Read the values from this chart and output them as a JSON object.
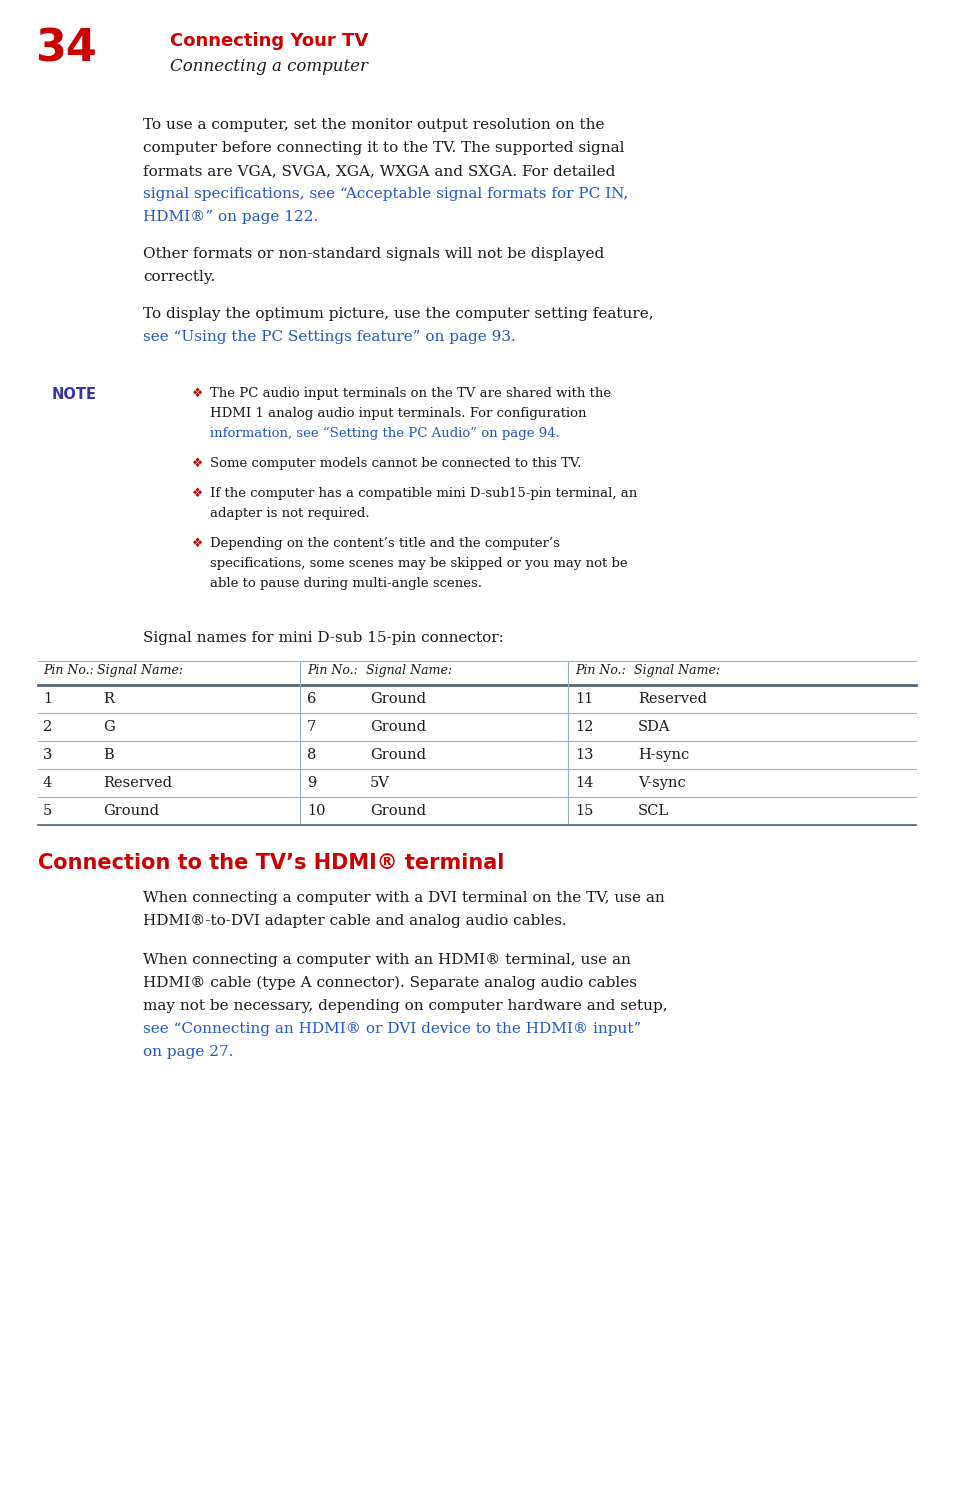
{
  "page_number": "34",
  "header_title": "Connecting Your TV",
  "header_subtitle": "Connecting a computer",
  "red_color": "#CC0000",
  "blue_color": "#2255CC",
  "black_color": "#1a1a1a",
  "gray_bar_color": "#7a8fa0",
  "note_color": "#3333aa",
  "background": "#ffffff",
  "table_headers": [
    "Pin No.:",
    "Signal Name:",
    "Pin No.:",
    "Signal Name:",
    "Pin No.:",
    "Signal Name:"
  ],
  "table_data": [
    [
      "1",
      "R",
      "6",
      "Ground",
      "11",
      "Reserved"
    ],
    [
      "2",
      "G",
      "7",
      "Ground",
      "12",
      "SDA"
    ],
    [
      "3",
      "B",
      "8",
      "Ground",
      "13",
      "H-sync"
    ],
    [
      "4",
      "Reserved",
      "9",
      "5V",
      "14",
      "V-sync"
    ],
    [
      "5",
      "Ground",
      "10",
      "Ground",
      "15",
      "SCL"
    ]
  ],
  "section2_title": "Connection to the TV’s HDMI® terminal"
}
